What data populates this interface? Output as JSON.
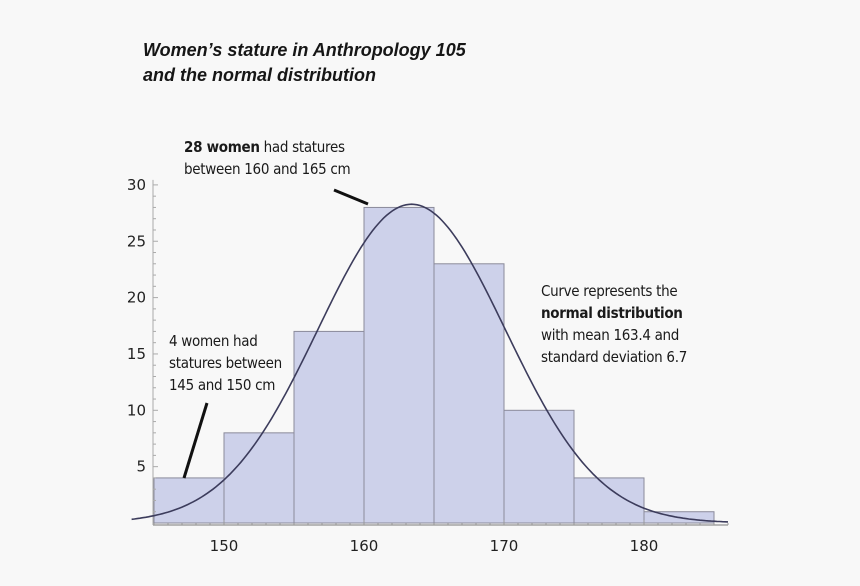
{
  "chart_data": {
    "type": "bar",
    "title_lines": [
      "Women’s stature in Anthropology 105",
      "and the normal distribution"
    ],
    "bin_edges": [
      145,
      150,
      155,
      160,
      165,
      170,
      175,
      180,
      185
    ],
    "values": [
      4,
      8,
      17,
      28,
      23,
      10,
      4,
      1
    ],
    "xlim": [
      143.4,
      186
    ],
    "ylim": [
      0,
      30
    ],
    "x_ticks": [
      150,
      160,
      170,
      180
    ],
    "y_ticks": [
      5,
      10,
      15,
      20,
      25,
      30
    ],
    "curve": {
      "type": "normal",
      "mean": 163.4,
      "sd": 6.7
    },
    "colors": {
      "bar_fill": "#cdd1ea",
      "bar_stroke": "#8a8a9a",
      "curve": "#3c3c5c",
      "background": "#f8f8f8"
    },
    "annotations": [
      {
        "bold": "28 women",
        "text": " had statures",
        "line2": "between 160 and 165 cm"
      },
      {
        "line1": "4 women had",
        "line2": "statures between",
        "line3": "145 and 150 cm"
      },
      {
        "line1": "Curve represents the",
        "bold": "normal distribution",
        "line3": "with mean 163.4 and",
        "line4": "standard deviation 6.7"
      }
    ],
    "grid": false
  }
}
